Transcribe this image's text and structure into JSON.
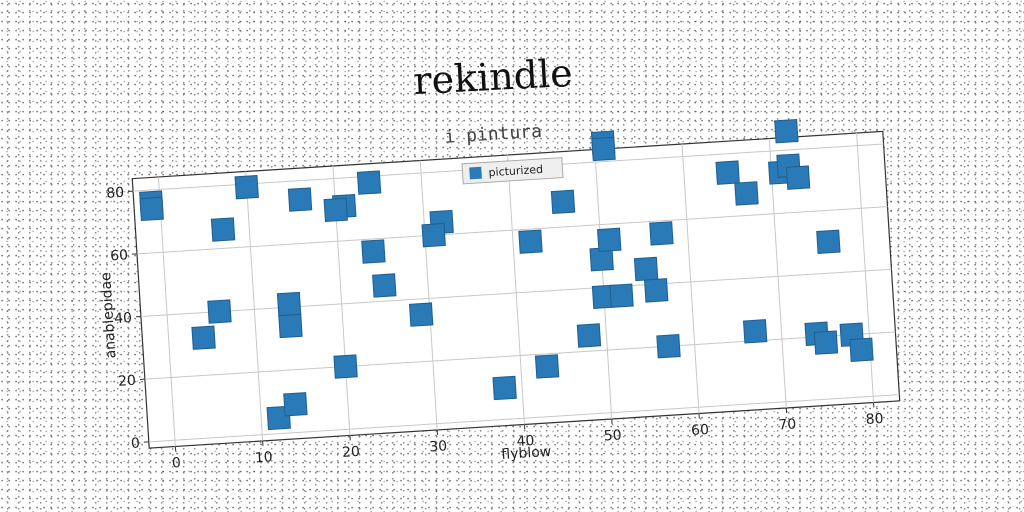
{
  "chart_data": {
    "type": "scatter",
    "title": "rekindle",
    "subtitle": "i pintura",
    "xlabel": "flyblow",
    "ylabel": "anablepidae",
    "xlim": [
      -3,
      83
    ],
    "ylim": [
      -2,
      84
    ],
    "xticks": [
      "0",
      "10",
      "20",
      "30",
      "40",
      "50",
      "60",
      "70",
      "80"
    ],
    "yticks": [
      "0",
      "20",
      "40",
      "60",
      "80"
    ],
    "grid": true,
    "legend_position": "top-center",
    "marker": "square",
    "color": "#2a7ab8",
    "series": [
      {
        "name": "picturized",
        "points": [
          [
            -1,
            76
          ],
          [
            -1,
            74
          ],
          [
            10,
            79
          ],
          [
            16,
            74
          ],
          [
            7,
            66
          ],
          [
            6,
            40
          ],
          [
            4,
            32
          ],
          [
            14,
            41
          ],
          [
            14,
            34
          ],
          [
            12,
            5
          ],
          [
            14,
            9
          ],
          [
            20,
            20
          ],
          [
            21,
            71
          ],
          [
            20,
            70
          ],
          [
            24,
            78
          ],
          [
            24,
            56
          ],
          [
            25,
            45
          ],
          [
            29,
            35
          ],
          [
            32,
            64
          ],
          [
            31,
            60
          ],
          [
            38,
            10
          ],
          [
            43,
            16
          ],
          [
            48,
            25
          ],
          [
            42,
            56
          ],
          [
            46,
            68
          ],
          [
            51,
            86
          ],
          [
            51,
            84
          ],
          [
            50,
            49
          ],
          [
            51,
            55
          ],
          [
            50,
            37
          ],
          [
            52,
            37
          ],
          [
            55,
            45
          ],
          [
            56,
            38
          ],
          [
            57,
            56
          ],
          [
            57,
            20
          ],
          [
            65,
            74
          ],
          [
            67,
            67
          ],
          [
            67,
            23
          ],
          [
            71,
            73
          ],
          [
            72,
            75
          ],
          [
            72,
            86
          ],
          [
            73,
            71
          ],
          [
            76,
            50
          ],
          [
            74,
            21
          ],
          [
            75,
            18
          ],
          [
            78,
            20
          ],
          [
            79,
            15
          ]
        ]
      }
    ]
  }
}
